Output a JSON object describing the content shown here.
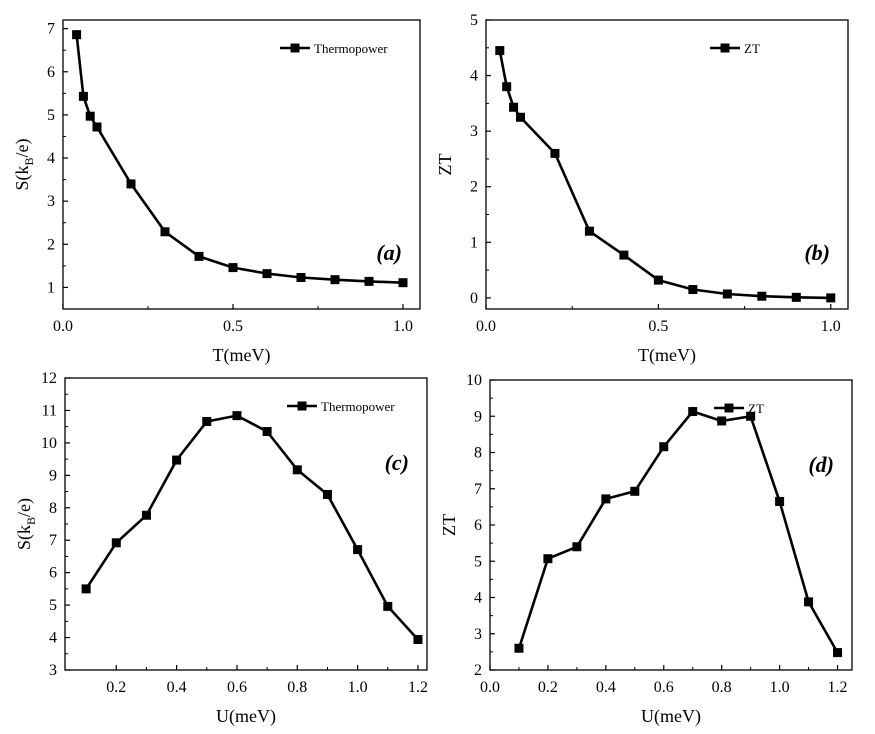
{
  "chart_data": [
    {
      "id": "a",
      "type": "line",
      "panel_label": "(a)",
      "xlabel": "T(meV)",
      "ylabel_main": "S(k",
      "ylabel_sub": "B",
      "ylabel_tail": "/e)",
      "xlim": [
        0.0,
        1.05
      ],
      "ylim": [
        0.5,
        7.2
      ],
      "xticks": [
        0.0,
        0.5,
        1.0
      ],
      "xtick_labels": [
        "0.0",
        "0.5",
        "1.0"
      ],
      "yticks": [
        1,
        2,
        3,
        4,
        5,
        6,
        7
      ],
      "ytick_labels": [
        "1",
        "2",
        "3",
        "4",
        "5",
        "6",
        "7"
      ],
      "legend": "Thermopower",
      "legend_position": "top-right",
      "series": [
        {
          "name": "Thermopower",
          "x": [
            0.04,
            0.06,
            0.08,
            0.1,
            0.2,
            0.3,
            0.4,
            0.5,
            0.6,
            0.7,
            0.8,
            0.9,
            1.0
          ],
          "y": [
            6.86,
            5.43,
            4.97,
            4.72,
            3.4,
            2.29,
            1.72,
            1.46,
            1.32,
            1.23,
            1.18,
            1.14,
            1.11
          ]
        }
      ]
    },
    {
      "id": "b",
      "type": "line",
      "panel_label": "(b)",
      "xlabel": "T(meV)",
      "ylabel_main": "ZT",
      "ylabel_sub": "",
      "ylabel_tail": "",
      "xlim": [
        0.0,
        1.05
      ],
      "ylim": [
        -0.2,
        5.0
      ],
      "xticks": [
        0.0,
        0.5,
        1.0
      ],
      "xtick_labels": [
        "0.0",
        "0.5",
        "1.0"
      ],
      "yticks": [
        0,
        1,
        2,
        3,
        4,
        5
      ],
      "ytick_labels": [
        "0",
        "1",
        "2",
        "3",
        "4",
        "5"
      ],
      "legend": "ZT",
      "legend_position": "top-right",
      "series": [
        {
          "name": "ZT",
          "x": [
            0.04,
            0.06,
            0.08,
            0.1,
            0.2,
            0.3,
            0.4,
            0.5,
            0.6,
            0.7,
            0.8,
            0.9,
            1.0
          ],
          "y": [
            4.45,
            3.8,
            3.43,
            3.25,
            2.6,
            1.2,
            0.77,
            0.32,
            0.15,
            0.07,
            0.03,
            0.01,
            0.0
          ]
        }
      ]
    },
    {
      "id": "c",
      "type": "line",
      "panel_label": "(c)",
      "xlabel": "U(meV)",
      "ylabel_main": "S(k",
      "ylabel_sub": "B",
      "ylabel_tail": "/e)",
      "xlim": [
        0.03,
        1.23
      ],
      "ylim": [
        3.0,
        12.0
      ],
      "xticks": [
        0.2,
        0.4,
        0.6,
        0.8,
        1.0,
        1.2
      ],
      "xtick_labels": [
        "0.2",
        "0.4",
        "0.6",
        "0.8",
        "1.0",
        "1.2"
      ],
      "yticks": [
        3,
        4,
        5,
        6,
        7,
        8,
        9,
        10,
        11,
        12
      ],
      "ytick_labels": [
        "3",
        "4",
        "5",
        "6",
        "7",
        "8",
        "9",
        "10",
        "11",
        "12"
      ],
      "legend": "Thermopower",
      "legend_position": "top-right",
      "series": [
        {
          "name": "Thermopower",
          "x": [
            0.1,
            0.2,
            0.3,
            0.4,
            0.5,
            0.6,
            0.7,
            0.8,
            0.9,
            1.0,
            1.1,
            1.2
          ],
          "y": [
            5.5,
            6.92,
            7.77,
            9.47,
            10.66,
            10.84,
            10.35,
            9.17,
            8.41,
            6.71,
            4.96,
            3.94
          ]
        }
      ]
    },
    {
      "id": "d",
      "type": "line",
      "panel_label": "(d)",
      "xlabel": "U(meV)",
      "ylabel_main": "ZT",
      "ylabel_sub": "",
      "ylabel_tail": "",
      "xlim": [
        0.0,
        1.25
      ],
      "ylim": [
        2.0,
        10.0
      ],
      "xticks": [
        0.0,
        0.2,
        0.4,
        0.6,
        0.8,
        1.0,
        1.2
      ],
      "xtick_labels": [
        "0.0",
        "0.2",
        "0.4",
        "0.6",
        "0.8",
        "1.0",
        "1.2"
      ],
      "yticks": [
        2,
        3,
        4,
        5,
        6,
        7,
        8,
        9,
        10
      ],
      "ytick_labels": [
        "2",
        "3",
        "4",
        "5",
        "6",
        "7",
        "8",
        "9",
        "10"
      ],
      "legend": "ZT",
      "legend_position": "top-right",
      "series": [
        {
          "name": "ZT",
          "x": [
            0.1,
            0.2,
            0.3,
            0.4,
            0.5,
            0.6,
            0.7,
            0.8,
            0.9,
            1.0,
            1.1,
            1.2
          ],
          "y": [
            2.6,
            5.07,
            5.4,
            6.72,
            6.93,
            8.16,
            9.13,
            8.87,
            9.0,
            6.65,
            3.88,
            2.48
          ]
        }
      ]
    }
  ]
}
